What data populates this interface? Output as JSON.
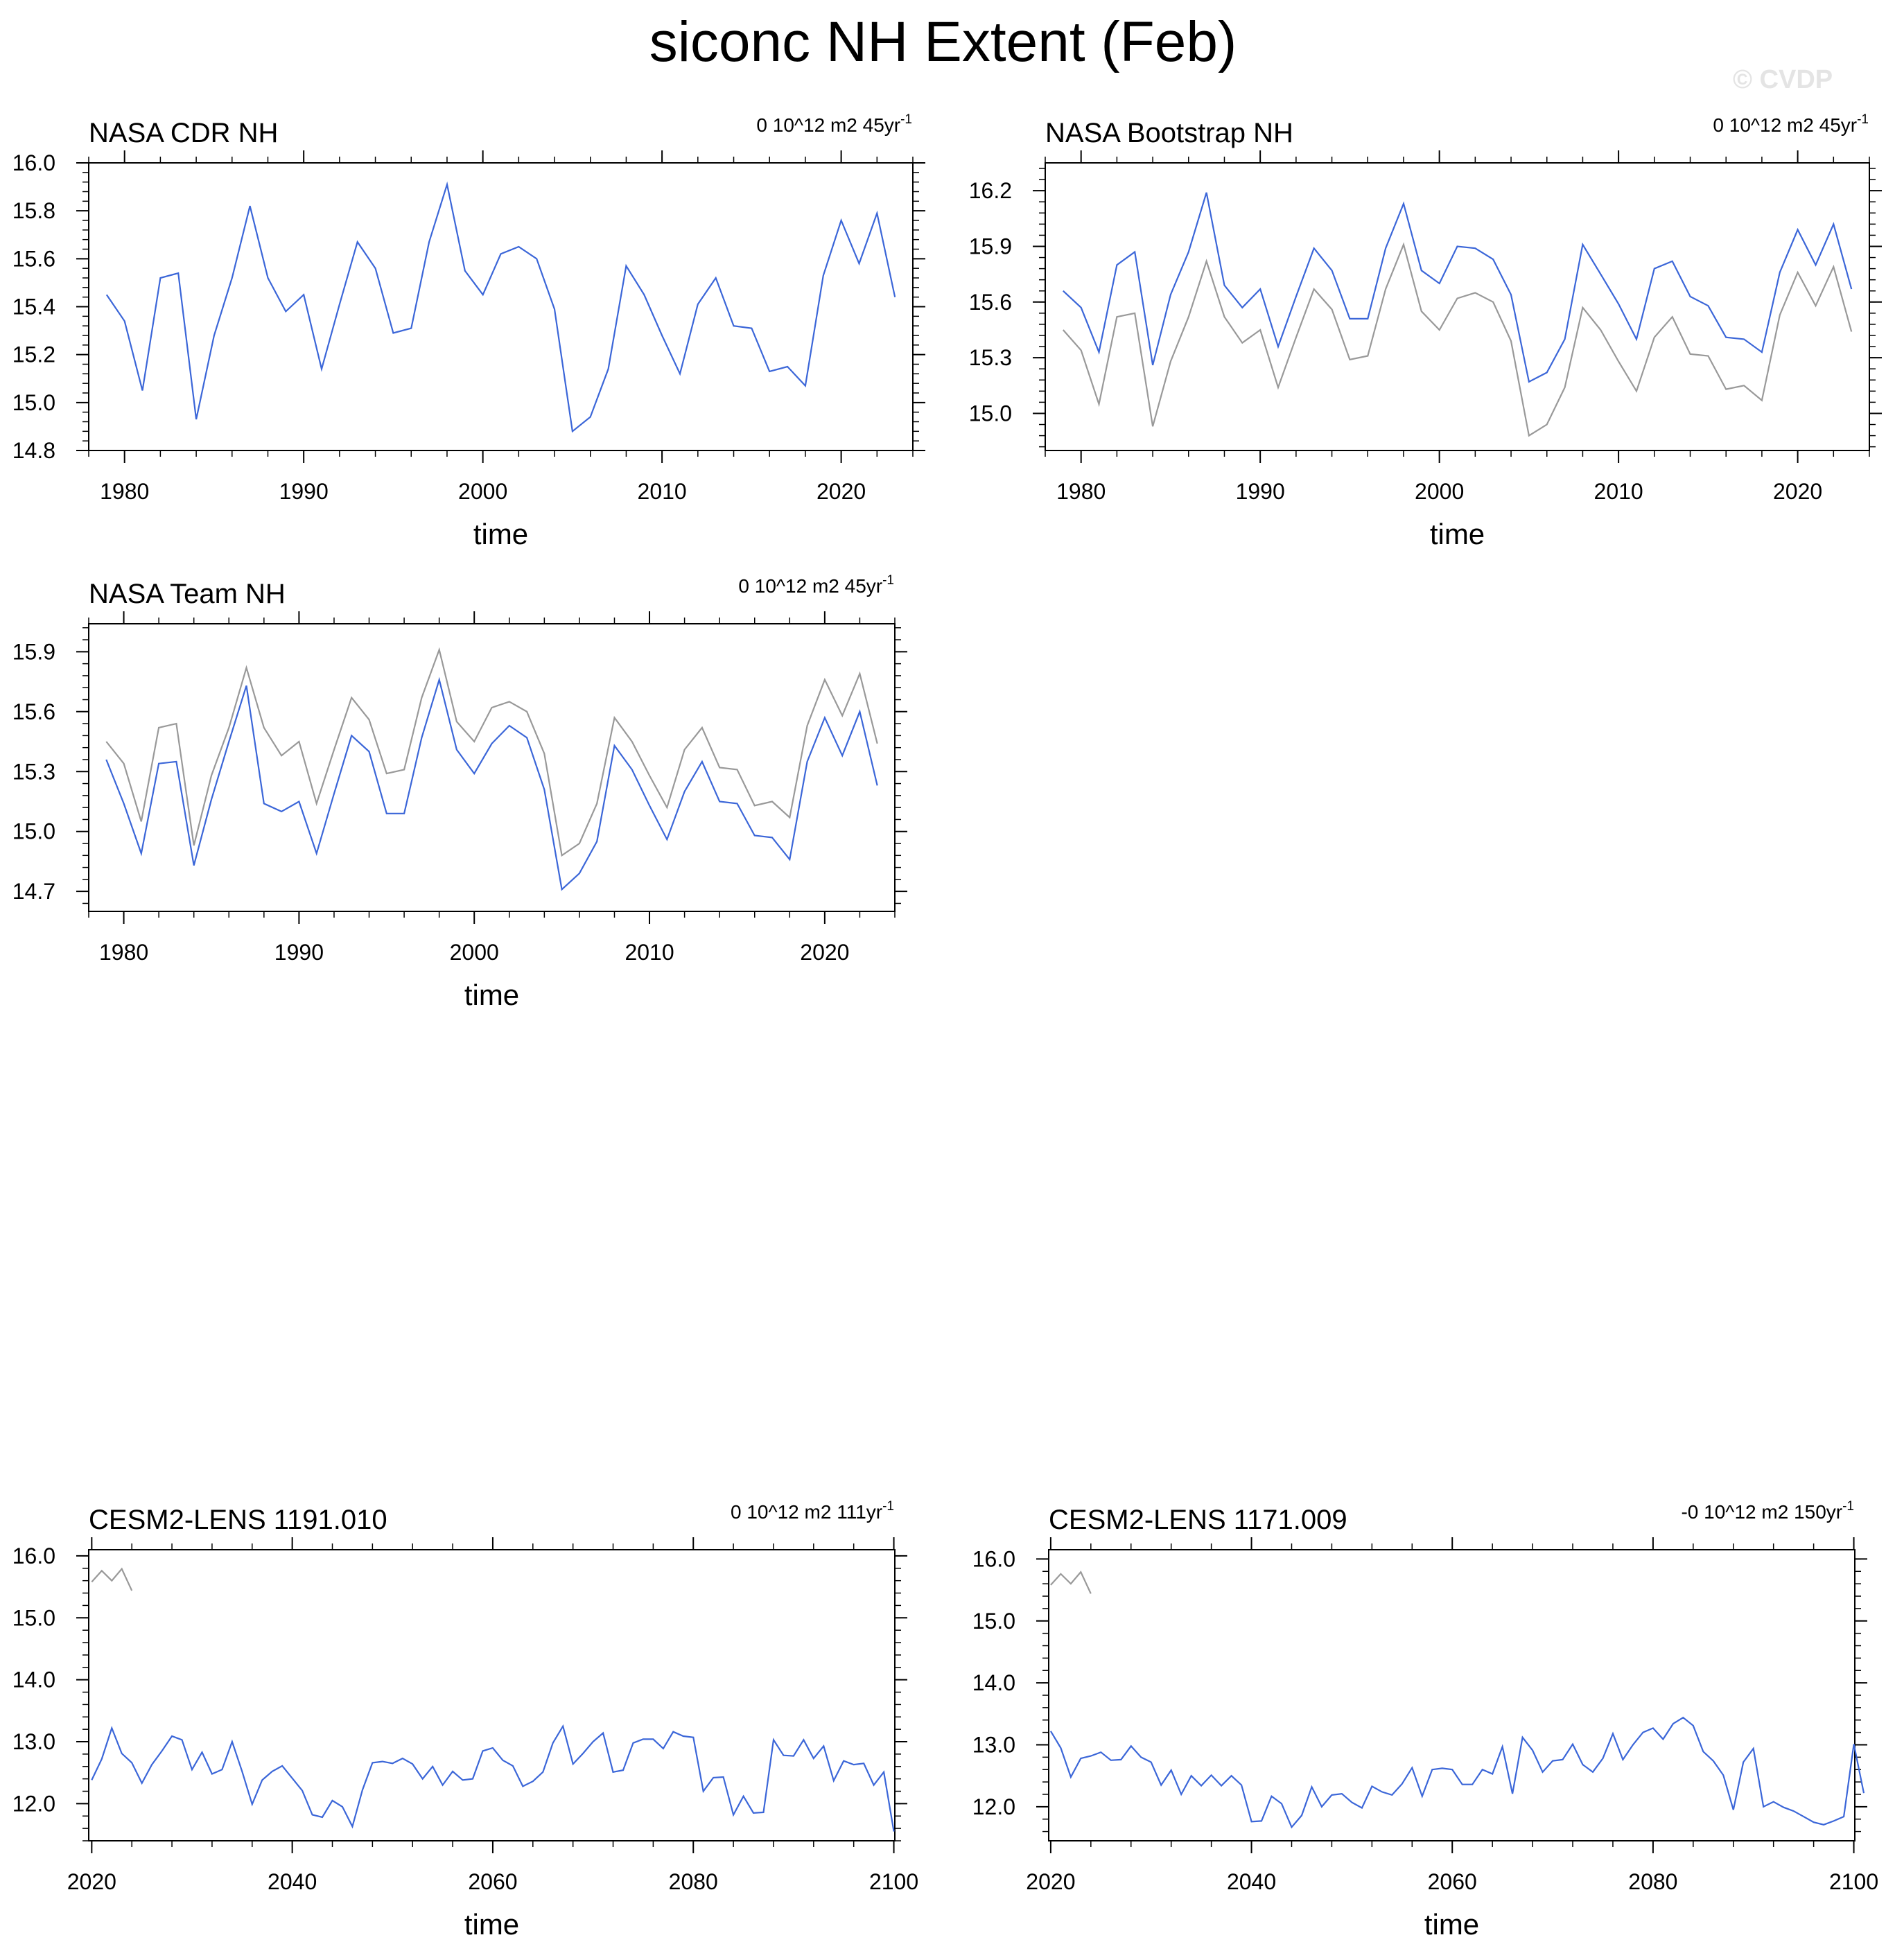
{
  "title": "siconc NH Extent (Feb)",
  "watermark": "© CVDP",
  "colors": {
    "primary": "#3b66d8",
    "reference": "#999999",
    "axis": "#000000"
  },
  "chart_data": [
    {
      "type": "line",
      "title": "NASA CDR NH",
      "trend_label": "0 10^12 m2 45yr",
      "trend_sup": "-1",
      "xlabel": "time",
      "ylabel": "",
      "xlim": [
        1978,
        2024
      ],
      "ylim": [
        14.8,
        16.0
      ],
      "xticks": [
        1980,
        1990,
        2000,
        2010,
        2020
      ],
      "yticks": [
        "14.8",
        "15.0",
        "15.2",
        "15.4",
        "15.6",
        "15.8",
        "16.0"
      ],
      "series": [
        {
          "role": "primary",
          "x_start": 1979,
          "x_step": 1,
          "values": [
            15.45,
            15.34,
            15.05,
            15.52,
            15.54,
            14.93,
            15.28,
            15.52,
            15.82,
            15.52,
            15.38,
            15.45,
            15.14,
            15.41,
            15.67,
            15.56,
            15.29,
            15.31,
            15.67,
            15.91,
            15.55,
            15.45,
            15.62,
            15.65,
            15.6,
            15.39,
            14.88,
            14.94,
            15.14,
            15.57,
            15.45,
            15.28,
            15.12,
            15.41,
            15.52,
            15.32,
            15.31,
            15.13,
            15.15,
            15.07,
            15.53,
            15.76,
            15.58,
            15.79,
            15.44
          ]
        }
      ]
    },
    {
      "type": "line",
      "title": "NASA Bootstrap NH",
      "trend_label": "0 10^12 m2 45yr",
      "trend_sup": "-1",
      "xlabel": "time",
      "ylabel": "",
      "xlim": [
        1978,
        2024
      ],
      "ylim": [
        14.8,
        16.35
      ],
      "xticks": [
        1980,
        1990,
        2000,
        2010,
        2020
      ],
      "yticks": [
        "15.0",
        "15.3",
        "15.6",
        "15.9",
        "16.2"
      ],
      "series": [
        {
          "role": "reference",
          "x_start": 1979,
          "x_step": 1,
          "values": [
            15.45,
            15.34,
            15.05,
            15.52,
            15.54,
            14.93,
            15.28,
            15.52,
            15.82,
            15.52,
            15.38,
            15.45,
            15.14,
            15.41,
            15.67,
            15.56,
            15.29,
            15.31,
            15.67,
            15.91,
            15.55,
            15.45,
            15.62,
            15.65,
            15.6,
            15.39,
            14.88,
            14.94,
            15.14,
            15.57,
            15.45,
            15.28,
            15.12,
            15.41,
            15.52,
            15.32,
            15.31,
            15.13,
            15.15,
            15.07,
            15.53,
            15.76,
            15.58,
            15.79,
            15.44
          ]
        },
        {
          "role": "primary",
          "x_start": 1979,
          "x_step": 1,
          "values": [
            15.66,
            15.57,
            15.33,
            15.8,
            15.87,
            15.26,
            15.64,
            15.87,
            16.19,
            15.69,
            15.57,
            15.67,
            15.36,
            15.63,
            15.89,
            15.77,
            15.51,
            15.51,
            15.89,
            16.13,
            15.77,
            15.7,
            15.9,
            15.89,
            15.83,
            15.64,
            15.17,
            15.22,
            15.4,
            15.91,
            15.75,
            15.59,
            15.4,
            15.78,
            15.82,
            15.63,
            15.58,
            15.41,
            15.4,
            15.33,
            15.76,
            15.99,
            15.8,
            16.02,
            15.67
          ]
        }
      ]
    },
    {
      "type": "line",
      "title": "NASA Team NH",
      "trend_label": "0 10^12 m2 45yr",
      "trend_sup": "-1",
      "xlabel": "time",
      "ylabel": "",
      "xlim": [
        1978,
        2024
      ],
      "ylim": [
        14.6,
        16.04
      ],
      "xticks": [
        1980,
        1990,
        2000,
        2010,
        2020
      ],
      "yticks": [
        "14.7",
        "15.0",
        "15.3",
        "15.6",
        "15.9"
      ],
      "series": [
        {
          "role": "reference",
          "x_start": 1979,
          "x_step": 1,
          "values": [
            15.45,
            15.34,
            15.05,
            15.52,
            15.54,
            14.93,
            15.28,
            15.52,
            15.82,
            15.52,
            15.38,
            15.45,
            15.14,
            15.41,
            15.67,
            15.56,
            15.29,
            15.31,
            15.67,
            15.91,
            15.55,
            15.45,
            15.62,
            15.65,
            15.6,
            15.39,
            14.88,
            14.94,
            15.14,
            15.57,
            15.45,
            15.28,
            15.12,
            15.41,
            15.52,
            15.32,
            15.31,
            15.13,
            15.15,
            15.07,
            15.53,
            15.76,
            15.58,
            15.79,
            15.44
          ]
        },
        {
          "role": "primary",
          "x_start": 1979,
          "x_step": 1,
          "values": [
            15.36,
            15.14,
            14.89,
            15.34,
            15.35,
            14.83,
            15.16,
            15.45,
            15.73,
            15.14,
            15.1,
            15.15,
            14.89,
            15.19,
            15.48,
            15.4,
            15.09,
            15.09,
            15.47,
            15.76,
            15.41,
            15.29,
            15.44,
            15.53,
            15.47,
            15.21,
            14.71,
            14.79,
            14.95,
            15.43,
            15.31,
            15.13,
            14.96,
            15.2,
            15.35,
            15.15,
            15.14,
            14.98,
            14.97,
            14.86,
            15.35,
            15.57,
            15.38,
            15.6,
            15.23
          ]
        }
      ]
    },
    {
      "type": "line",
      "title": "CESM2-LENS 1191.010",
      "trend_label": "0 10^12 m2 111yr",
      "trend_sup": "-1",
      "xlabel": "time",
      "ylabel": "",
      "xlim": [
        2019.7,
        2100.1
      ],
      "ylim": [
        11.4,
        16.1
      ],
      "xticks": [
        2020,
        2040,
        2060,
        2080,
        2100
      ],
      "yticks": [
        "12.0",
        "13.0",
        "14.0",
        "15.0",
        "16.0"
      ],
      "series": [
        {
          "role": "reference",
          "x_start": 2020,
          "x_step": 1,
          "values": [
            15.58,
            15.76,
            15.6,
            15.79,
            15.44
          ]
        },
        {
          "role": "primary",
          "x_start": 2020,
          "x_step": 1,
          "values": [
            12.38,
            12.72,
            13.22,
            12.81,
            12.66,
            12.33,
            12.63,
            12.85,
            13.09,
            13.03,
            12.55,
            12.83,
            12.48,
            12.55,
            13.0,
            12.52,
            11.99,
            12.38,
            12.52,
            12.61,
            12.41,
            12.21,
            11.82,
            11.78,
            12.05,
            11.95,
            11.63,
            12.22,
            12.66,
            12.68,
            12.65,
            12.73,
            12.64,
            12.4,
            12.6,
            12.3,
            12.52,
            12.38,
            12.4,
            12.85,
            12.9,
            12.7,
            12.61,
            12.28,
            12.36,
            12.51,
            12.98,
            13.25,
            12.64,
            12.81,
            13.0,
            13.14,
            12.51,
            12.54,
            12.98,
            13.04,
            13.04,
            12.89,
            13.16,
            13.09,
            13.07,
            12.2,
            12.42,
            12.43,
            11.82,
            12.12,
            11.85,
            11.86,
            13.03,
            12.78,
            12.77,
            13.03,
            12.73,
            12.93,
            12.37,
            12.69,
            12.63,
            12.65,
            12.3,
            12.51,
            11.55
          ]
        }
      ]
    },
    {
      "type": "line",
      "title": "CESM2-LENS 1171.009",
      "trend_label": "-0 10^12 m2 150yr",
      "trend_sup": "-1",
      "xlabel": "time",
      "ylabel": "",
      "xlim": [
        2019.8,
        2100.1
      ],
      "ylim": [
        11.45,
        16.15
      ],
      "xticks": [
        2020,
        2040,
        2060,
        2080,
        2100
      ],
      "yticks": [
        "12.0",
        "13.0",
        "14.0",
        "15.0",
        "16.0"
      ],
      "series": [
        {
          "role": "reference",
          "x_start": 2020,
          "x_step": 1,
          "values": [
            15.58,
            15.76,
            15.6,
            15.79,
            15.44
          ]
        },
        {
          "role": "primary",
          "x_start": 2020,
          "x_step": 1,
          "values": [
            13.22,
            12.95,
            12.48,
            12.78,
            12.82,
            12.88,
            12.75,
            12.76,
            12.98,
            12.8,
            12.72,
            12.35,
            12.59,
            12.2,
            12.5,
            12.34,
            12.51,
            12.34,
            12.5,
            12.35,
            11.76,
            11.77,
            12.17,
            12.05,
            11.67,
            11.86,
            12.32,
            12.0,
            12.19,
            12.21,
            12.07,
            11.98,
            12.33,
            12.24,
            12.19,
            12.37,
            12.63,
            12.17,
            12.6,
            12.62,
            12.6,
            12.36,
            12.36,
            12.6,
            12.53,
            12.97,
            12.21,
            13.12,
            12.91,
            12.56,
            12.74,
            12.76,
            13.01,
            12.68,
            12.56,
            12.78,
            13.18,
            12.76,
            13.0,
            13.2,
            13.27,
            13.09,
            13.34,
            13.44,
            13.31,
            12.89,
            12.74,
            12.51,
            11.95,
            12.72,
            12.94,
            12.0,
            12.08,
            11.99,
            11.93,
            11.84,
            11.75,
            11.71,
            11.77,
            11.84,
            13.01,
            12.22
          ]
        }
      ]
    }
  ]
}
